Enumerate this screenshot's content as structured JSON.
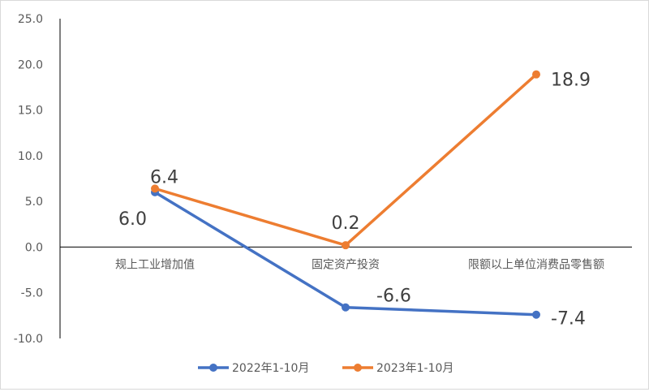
{
  "chart_data": {
    "type": "line",
    "categories": [
      "规上工业增加值",
      "固定资产投资",
      "限额以上单位消费品零售额"
    ],
    "series": [
      {
        "name": "2022年1-10月",
        "values": [
          6.0,
          -6.6,
          -7.4
        ],
        "labels": [
          "6.0",
          "-6.6",
          "-7.4"
        ],
        "color": "#4472c4"
      },
      {
        "name": "2023年1-10月",
        "values": [
          6.4,
          0.2,
          18.9
        ],
        "labels": [
          "6.4",
          "0.2",
          "18.9"
        ],
        "color": "#ed7d31"
      }
    ],
    "yticks": [
      "25.0",
      "20.0",
      "15.0",
      "10.0",
      "5.0",
      "0.0",
      "-5.0",
      "-10.0"
    ],
    "ylim": [
      -10,
      25
    ],
    "grid": false,
    "legend": "bottom"
  }
}
